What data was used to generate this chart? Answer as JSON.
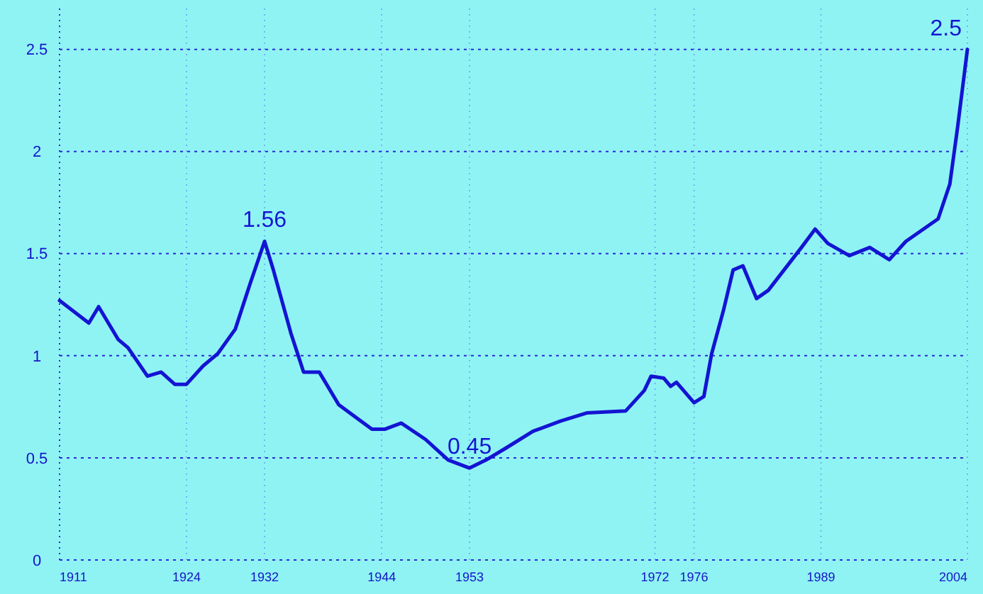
{
  "chart_data": {
    "type": "line",
    "x": [
      1911,
      1914,
      1915,
      1917,
      1918,
      1920,
      1921.4,
      1922.8,
      1924,
      1925.7,
      1927.2,
      1929,
      1930.5,
      1932,
      1932.9,
      1934.7,
      1936,
      1937.6,
      1939.6,
      1943,
      1944.3,
      1946,
      1948.5,
      1950.8,
      1953,
      1954.7,
      1956.8,
      1959.5,
      1962.3,
      1965,
      1969,
      1970.9,
      1971.6,
      1972.9,
      1973.6,
      1974.2,
      1976,
      1977,
      1977.8,
      1979,
      1980,
      1981,
      1982.4,
      1983.6,
      1987,
      1988.4,
      1989.7,
      1991.9,
      1994,
      1996,
      1997.7,
      2001,
      2002.2,
      2003,
      2004
    ],
    "series": [
      {
        "color": "#1414d2",
        "values": [
          1.27,
          1.16,
          1.24,
          1.08,
          1.04,
          0.9,
          0.92,
          0.86,
          0.86,
          0.95,
          1.01,
          1.13,
          1.35,
          1.56,
          1.42,
          1.11,
          0.92,
          0.92,
          0.76,
          0.64,
          0.64,
          0.67,
          0.59,
          0.49,
          0.45,
          0.49,
          0.55,
          0.63,
          0.68,
          0.72,
          0.73,
          0.83,
          0.9,
          0.89,
          0.85,
          0.87,
          0.77,
          0.8,
          1.01,
          1.22,
          1.42,
          1.44,
          1.28,
          1.32,
          1.53,
          1.62,
          1.55,
          1.49,
          1.53,
          1.47,
          1.56,
          1.67,
          1.84,
          2.12,
          2.5
        ]
      }
    ],
    "xlim": [
      1911,
      2004
    ],
    "xticks": [
      1911,
      1924,
      1932,
      1944,
      1953,
      1972,
      1976,
      1989,
      2004
    ],
    "ylim": [
      0,
      2.7
    ],
    "yticks": [
      0,
      0.5,
      1,
      1.5,
      2,
      2.5
    ],
    "grid": true,
    "marker": "none",
    "line_style": "solid",
    "annotations": [
      {
        "text": "1.56",
        "x": 1932,
        "y": 1.56
      },
      {
        "text": "0.45",
        "x": 1953,
        "y": 0.45
      },
      {
        "text": "2.5",
        "x": 2004,
        "y": 2.5
      }
    ]
  }
}
